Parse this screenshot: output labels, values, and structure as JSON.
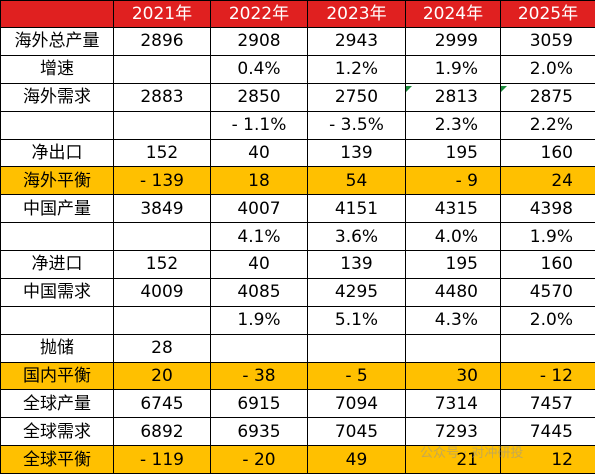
{
  "chart_data": {
    "type": "table",
    "columns": [
      "",
      "2021年",
      "2022年",
      "2023年",
      "2024年",
      "2025年"
    ],
    "rows": [
      {
        "label": "海外总产量",
        "values": [
          "2896",
          "2908",
          "2943",
          "2999",
          "3059"
        ],
        "highlight": false
      },
      {
        "label": "增速",
        "values": [
          "",
          "0.4%",
          "1.2%",
          "1.9%",
          "2.0%"
        ],
        "highlight": false
      },
      {
        "label": "海外需求",
        "values": [
          "2883",
          "2850",
          "2750",
          "2813",
          "2875"
        ],
        "highlight": false
      },
      {
        "label": "",
        "values": [
          "",
          "- 1.1%",
          "- 3.5%",
          "2.3%",
          "2.2%"
        ],
        "highlight": false
      },
      {
        "label": "净出口",
        "values": [
          "152",
          "40",
          "139",
          "195",
          "160"
        ],
        "highlight": false
      },
      {
        "label": "海外平衡",
        "values": [
          "- 139",
          "18",
          "54",
          "- 9",
          "24"
        ],
        "highlight": true
      },
      {
        "label": "中国产量",
        "values": [
          "3849",
          "4007",
          "4151",
          "4315",
          "4398"
        ],
        "highlight": false
      },
      {
        "label": "",
        "values": [
          "",
          "4.1%",
          "3.6%",
          "4.0%",
          "1.9%"
        ],
        "highlight": false
      },
      {
        "label": "净进口",
        "values": [
          "152",
          "40",
          "139",
          "195",
          "160"
        ],
        "highlight": false
      },
      {
        "label": "中国需求",
        "values": [
          "4009",
          "4085",
          "4295",
          "4480",
          "4570"
        ],
        "highlight": false
      },
      {
        "label": "",
        "values": [
          "",
          "1.9%",
          "5.1%",
          "4.3%",
          "2.0%"
        ],
        "highlight": false
      },
      {
        "label": "抛储",
        "values": [
          "28",
          "",
          "",
          "",
          ""
        ],
        "highlight": false
      },
      {
        "label": "国内平衡",
        "values": [
          "20",
          "- 38",
          "- 5",
          "30",
          "- 12"
        ],
        "highlight": true
      },
      {
        "label": "全球产量",
        "values": [
          "6745",
          "6915",
          "7094",
          "7314",
          "7457"
        ],
        "highlight": false
      },
      {
        "label": "全球需求",
        "values": [
          "6892",
          "6935",
          "7045",
          "7293",
          "7445"
        ],
        "highlight": false
      },
      {
        "label": "全球平衡",
        "values": [
          "- 119",
          "- 20",
          "49",
          "21",
          "12"
        ],
        "highlight": true
      }
    ],
    "header_color": "#e02020",
    "highlight_color": "#ffc000"
  },
  "watermark": {
    "text": "公众号 · 对冲研投"
  }
}
